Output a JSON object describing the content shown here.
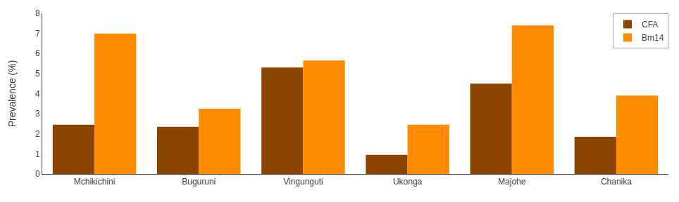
{
  "chart_data": {
    "type": "bar",
    "categories": [
      "Mchikichini",
      "Buguruni",
      "Vingunguti",
      "Ukonga",
      "Majohe",
      "Chanika"
    ],
    "series": [
      {
        "name": "CFA",
        "color": "#8B4500",
        "values": [
          2.45,
          2.35,
          5.3,
          0.95,
          4.5,
          1.85
        ]
      },
      {
        "name": "Bm14",
        "color": "#FF8C00",
        "values": [
          7.0,
          3.25,
          5.65,
          2.45,
          7.4,
          3.9
        ]
      }
    ],
    "ylabel": "Prevalence (%)",
    "ylim": [
      0,
      8
    ],
    "yticks": [
      0,
      1,
      2,
      3,
      4,
      5,
      6,
      7,
      8
    ],
    "grid": false,
    "legend": "upper right"
  }
}
